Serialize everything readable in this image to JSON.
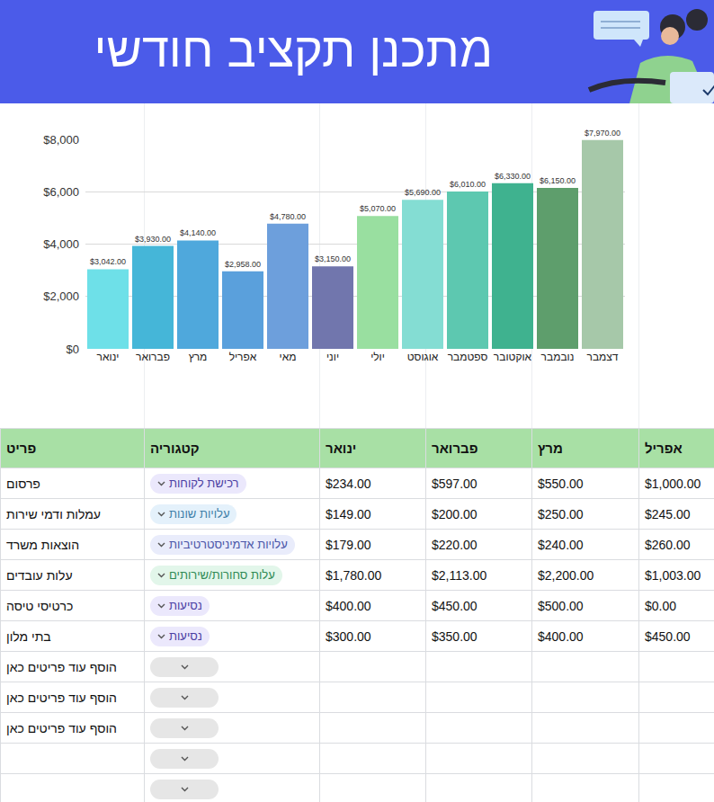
{
  "header": {
    "title": "מתכנן תקציב חודשי"
  },
  "chart_data": {
    "type": "bar",
    "categories": [
      "ינואר",
      "פברואר",
      "מרץ",
      "אפריל",
      "מאי",
      "יוני",
      "יולי",
      "אוגוסט",
      "ספטמבר",
      "אוקטובר",
      "נובמבר",
      "דצמבר"
    ],
    "values": [
      3042,
      3930,
      4140,
      2958,
      4780,
      3150,
      5070,
      5690,
      6010,
      6330,
      6150,
      7970
    ],
    "value_labels": [
      "$3,042.00",
      "$3,930.00",
      "$4,140.00",
      "$2,958.00",
      "$4,780.00",
      "$3,150.00",
      "$5,070.00",
      "$5,690.00",
      "$6,010.00",
      "$6,330.00",
      "$6,150.00",
      "$7,970.00"
    ],
    "colors": [
      "#6ee0e8",
      "#45b6d8",
      "#4fa8dc",
      "#5aa0dc",
      "#6d9fdc",
      "#7176ad",
      "#99dfa0",
      "#84ddd3",
      "#5dc8b0",
      "#3fb28f",
      "#5e9e6c",
      "#a6c8a9"
    ],
    "ylim": [
      0,
      8000
    ],
    "yticks": [
      {
        "value": 0,
        "label": "$0"
      },
      {
        "value": 2000,
        "label": "$2,000"
      },
      {
        "value": 4000,
        "label": "$4,000"
      },
      {
        "value": 6000,
        "label": "$6,000"
      },
      {
        "value": 8000,
        "label": "$8,000"
      }
    ],
    "grid": true,
    "data_labels": true
  },
  "table": {
    "columns": [
      "פריט",
      "קטגוריה",
      "ינואר",
      "פברואר",
      "מרץ",
      "אפריל"
    ],
    "rows": [
      [
        "פרסום",
        "רכישת לקוחות",
        "$234.00",
        "$597.00",
        "$550.00",
        "$1,000.00"
      ],
      [
        "עמלות ודמי שירות",
        "עלויות שונות",
        "$149.00",
        "$200.00",
        "$250.00",
        "$245.00"
      ],
      [
        "הוצאות משרד",
        "עלויות אדמיניסטרטיביות",
        "$179.00",
        "$220.00",
        "$240.00",
        "$260.00"
      ],
      [
        "עלות עובדים",
        "עלות סחורות/שירותים",
        "$1,780.00",
        "$2,113.00",
        "$2,200.00",
        "$1,003.00"
      ],
      [
        "כרטיסי טיסה",
        "נסיעות",
        "$400.00",
        "$450.00",
        "$500.00",
        "$0.00"
      ],
      [
        "בתי מלון",
        "נסיעות",
        "$300.00",
        "$350.00",
        "$400.00",
        "$450.00"
      ],
      [
        "הוסף עוד פריטים כאן",
        null,
        null,
        null,
        null,
        null
      ],
      [
        "הוסף עוד פריטים כאן",
        null,
        null,
        null,
        null,
        null
      ],
      [
        "הוסף עוד פריטים כאן",
        null,
        null,
        null,
        null,
        null
      ],
      [
        null,
        null,
        null,
        null,
        null,
        null
      ],
      [
        null,
        null,
        null,
        null,
        null,
        null
      ]
    ]
  }
}
